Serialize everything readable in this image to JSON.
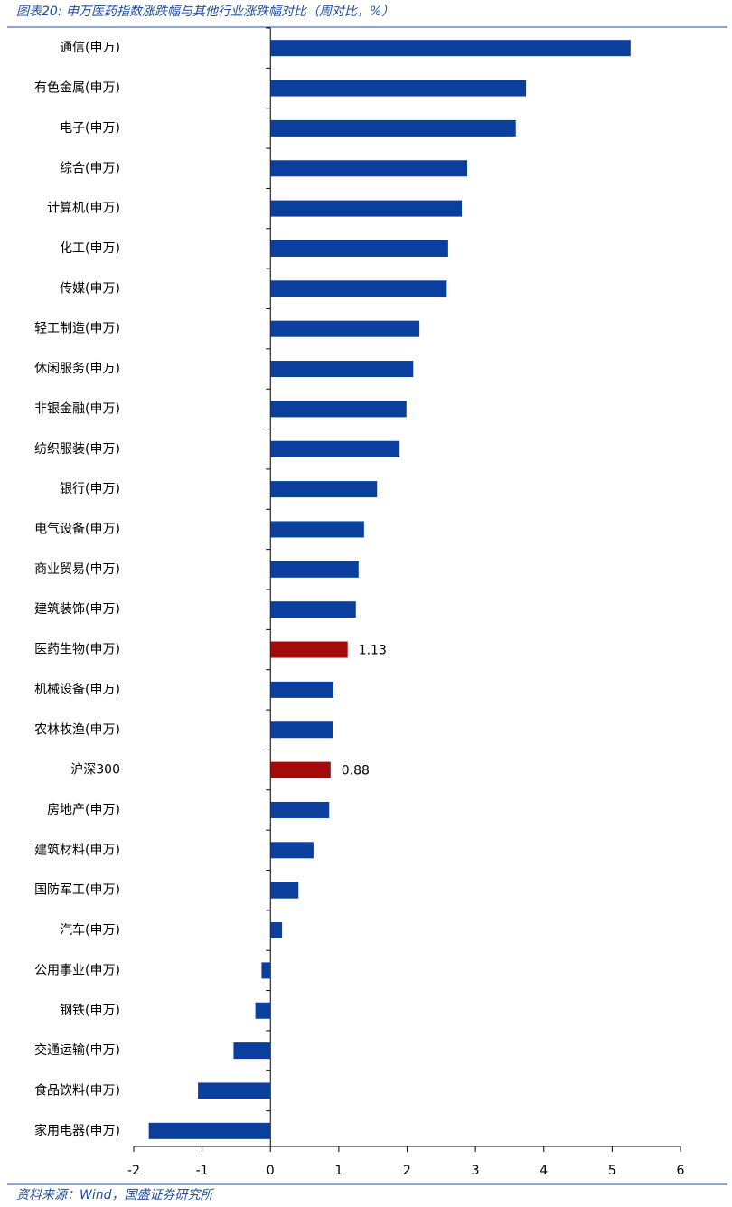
{
  "chart_data": {
    "type": "hbar",
    "title": "图表20:  申万医药指数涨跌幅与其他行业涨跌幅对比（周对比，%）",
    "source": "资料来源：Wind，国盛证券研究所",
    "categories": [
      "通信(申万)",
      "有色金属(申万)",
      "电子(申万)",
      "综合(申万)",
      "计算机(申万)",
      "化工(申万)",
      "传媒(申万)",
      "轻工制造(申万)",
      "休闲服务(申万)",
      "非银金融(申万)",
      "纺织服装(申万)",
      "银行(申万)",
      "电气设备(申万)",
      "商业贸易(申万)",
      "建筑装饰(申万)",
      "医药生物(申万)",
      "机械设备(申万)",
      "农林牧渔(申万)",
      "沪深300",
      "房地产(申万)",
      "建筑材料(申万)",
      "国防军工(申万)",
      "汽车(申万)",
      "公用事业(申万)",
      "钢铁(申万)",
      "交通运输(申万)",
      "食品饮料(申万)",
      "家用电器(申万)"
    ],
    "values": [
      5.27,
      3.74,
      3.59,
      2.88,
      2.8,
      2.6,
      2.58,
      2.18,
      2.09,
      1.99,
      1.89,
      1.56,
      1.37,
      1.29,
      1.25,
      1.13,
      0.92,
      0.91,
      0.88,
      0.86,
      0.63,
      0.41,
      0.17,
      -0.13,
      -0.22,
      -0.54,
      -1.06,
      -1.78
    ],
    "value_labels": [
      null,
      null,
      null,
      null,
      null,
      null,
      null,
      null,
      null,
      null,
      null,
      null,
      null,
      null,
      null,
      "1.13",
      null,
      null,
      "0.88",
      null,
      null,
      null,
      null,
      null,
      null,
      null,
      null,
      null
    ],
    "colors": [
      "#0a3f9e",
      "#0a3f9e",
      "#0a3f9e",
      "#0a3f9e",
      "#0a3f9e",
      "#0a3f9e",
      "#0a3f9e",
      "#0a3f9e",
      "#0a3f9e",
      "#0a3f9e",
      "#0a3f9e",
      "#0a3f9e",
      "#0a3f9e",
      "#0a3f9e",
      "#0a3f9e",
      "#a50a0a",
      "#0a3f9e",
      "#0a3f9e",
      "#a50a0a",
      "#0a3f9e",
      "#0a3f9e",
      "#0a3f9e",
      "#0a3f9e",
      "#0a3f9e",
      "#0a3f9e",
      "#0a3f9e",
      "#0a3f9e",
      "#0a3f9e"
    ],
    "xlim": [
      -2,
      6
    ],
    "xticks": [
      -2,
      -1,
      0,
      1,
      2,
      3,
      4,
      5,
      6
    ],
    "grid": false
  }
}
